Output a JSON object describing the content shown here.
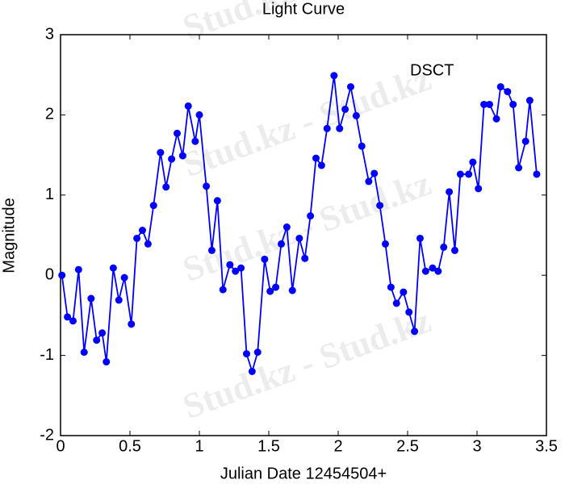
{
  "chart_data": {
    "type": "line",
    "title": "Light Curve",
    "xlabel": "Julian Date 12454504+",
    "ylabel": "Magnitude",
    "annotation": "DSCT",
    "watermark": "Stud.kz - Stud.kz",
    "x": [
      0.01,
      0.05,
      0.09,
      0.13,
      0.17,
      0.22,
      0.26,
      0.3,
      0.33,
      0.38,
      0.42,
      0.46,
      0.51,
      0.55,
      0.59,
      0.63,
      0.67,
      0.72,
      0.76,
      0.8,
      0.84,
      0.88,
      0.92,
      0.97,
      1.0,
      1.05,
      1.09,
      1.13,
      1.17,
      1.22,
      1.26,
      1.3,
      1.34,
      1.38,
      1.42,
      1.47,
      1.51,
      1.55,
      1.59,
      1.63,
      1.67,
      1.72,
      1.76,
      1.8,
      1.84,
      1.88,
      1.92,
      1.97,
      2.01,
      2.05,
      2.09,
      2.13,
      2.17,
      2.22,
      2.26,
      2.3,
      2.34,
      2.38,
      2.42,
      2.47,
      2.51,
      2.55,
      2.59,
      2.63,
      2.68,
      2.72,
      2.76,
      2.8,
      2.84,
      2.88,
      2.94,
      2.97,
      3.01,
      3.05,
      3.09,
      3.14,
      3.17,
      3.22,
      3.26,
      3.3,
      3.35,
      3.38,
      3.43
    ],
    "series": [
      {
        "name": "DSCT",
        "color": "#0000ff",
        "values": [
          0,
          -0.52,
          -0.57,
          0.07,
          -0.96,
          -0.29,
          -0.81,
          -0.72,
          -1.08,
          0.09,
          -0.31,
          -0.03,
          -0.61,
          0.46,
          0.56,
          0.39,
          0.87,
          1.53,
          1.1,
          1.45,
          1.77,
          1.49,
          2.11,
          1.67,
          2.0,
          1.11,
          0.31,
          0.93,
          -0.18,
          0.13,
          0.05,
          0.09,
          -0.98,
          -1.2,
          -0.96,
          0.2,
          -0.2,
          -0.15,
          0.39,
          0.6,
          -0.19,
          0.46,
          0.21,
          0.74,
          1.46,
          1.37,
          1.83,
          2.49,
          1.83,
          2.07,
          2.35,
          1.99,
          1.61,
          1.17,
          1.27,
          0.87,
          0.39,
          -0.15,
          -0.35,
          -0.21,
          -0.46,
          -0.7,
          0.46,
          0.05,
          0.09,
          0.05,
          0.35,
          1.04,
          0.31,
          1.26,
          1.26,
          1.41,
          1.08,
          2.13,
          2.13,
          1.95,
          2.35,
          2.29,
          2.13,
          1.34,
          1.67,
          2.18,
          1.26
        ]
      }
    ],
    "xlim": [
      0,
      3.5
    ],
    "xticks": [
      0,
      0.5,
      1,
      1.5,
      2,
      2.5,
      3,
      3.5
    ],
    "ylim": [
      -2,
      3
    ],
    "yticks": [
      -2,
      -1,
      0,
      1,
      2,
      3
    ],
    "grid": false
  }
}
